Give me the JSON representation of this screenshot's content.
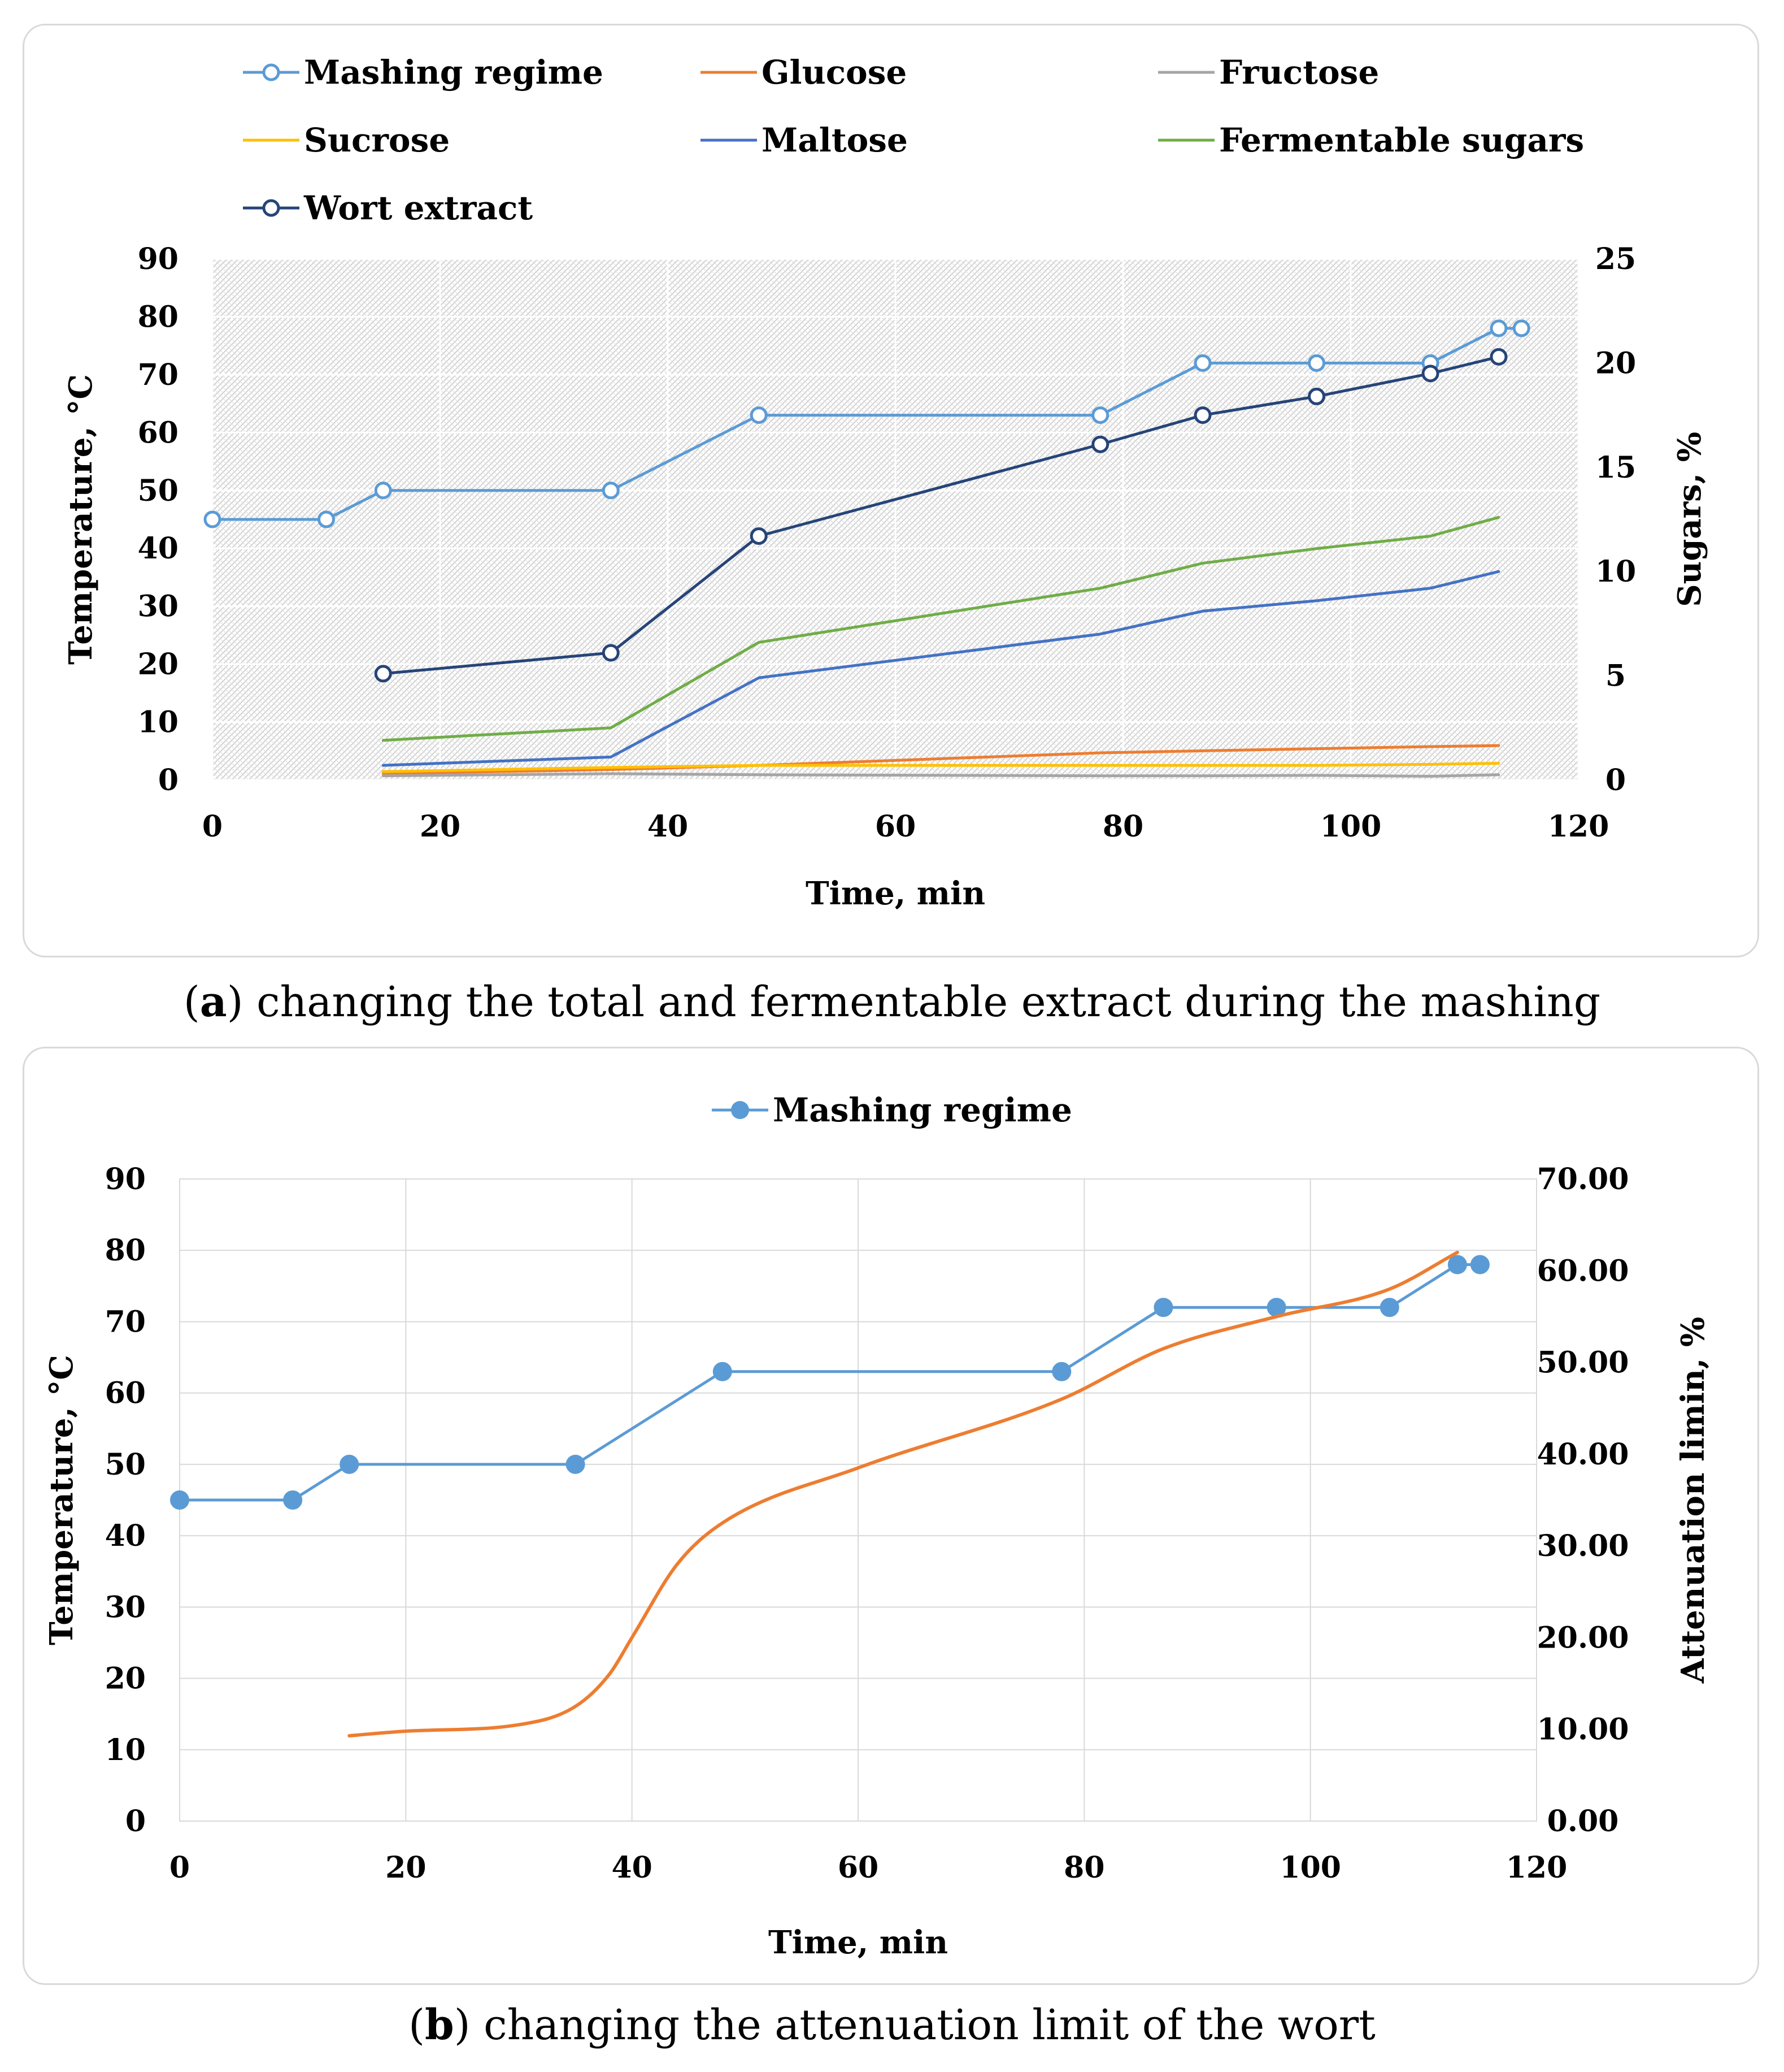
{
  "figure_a": {
    "caption_label": "a",
    "caption_text": "changing the total and fermentable extract during the mashing"
  },
  "figure_b": {
    "caption_label": "b",
    "caption_text": "changing the attenuation limit of the wort"
  },
  "chart_data": [
    {
      "type": "line",
      "xlabel": "Time, min",
      "ylabel": "Temperature, °C",
      "y2label": "Sugars, %",
      "xlim": [
        0,
        120
      ],
      "ylim": [
        0,
        90
      ],
      "y2lim": [
        0,
        25
      ],
      "xticks": [
        0,
        20,
        40,
        60,
        80,
        100,
        120
      ],
      "yticks": [
        0,
        10,
        20,
        30,
        40,
        50,
        60,
        70,
        80,
        90
      ],
      "y2ticks": [
        0,
        5,
        10,
        15,
        20,
        25
      ],
      "legend_position": "top",
      "background": "hatched",
      "series": [
        {
          "name": "Mashing regime",
          "axis": "left",
          "color": "#5b9bd5",
          "marker": "open-circle",
          "x": [
            0,
            10,
            15,
            35,
            48,
            78,
            87,
            97,
            107,
            113,
            115
          ],
          "y": [
            45,
            45,
            50,
            50,
            63,
            63,
            72,
            72,
            72,
            78,
            78
          ]
        },
        {
          "name": "Glucose",
          "axis": "right",
          "color": "#ed7d31",
          "marker": "none",
          "x": [
            15,
            35,
            48,
            78,
            87,
            97,
            107,
            113
          ],
          "y": [
            0.3,
            0.5,
            0.7,
            1.3,
            1.4,
            1.5,
            1.6,
            1.65
          ]
        },
        {
          "name": "Fructose",
          "axis": "right",
          "color": "#a5a5a5",
          "marker": "none",
          "x": [
            15,
            35,
            48,
            78,
            87,
            97,
            107,
            113
          ],
          "y": [
            0.2,
            0.3,
            0.25,
            0.2,
            0.2,
            0.22,
            0.18,
            0.25
          ]
        },
        {
          "name": "Sucrose",
          "axis": "right",
          "color": "#ffc000",
          "marker": "none",
          "x": [
            15,
            35,
            48,
            78,
            87,
            97,
            107,
            113
          ],
          "y": [
            0.4,
            0.6,
            0.7,
            0.7,
            0.7,
            0.7,
            0.75,
            0.8
          ]
        },
        {
          "name": "Maltose",
          "axis": "right",
          "color": "#4472c4",
          "marker": "none",
          "x": [
            15,
            35,
            48,
            78,
            87,
            97,
            107,
            113
          ],
          "y": [
            0.7,
            1.1,
            4.9,
            7.0,
            8.1,
            8.6,
            9.2,
            10.0
          ]
        },
        {
          "name": "Fermentable sugars",
          "axis": "right",
          "color": "#70ad47",
          "marker": "none",
          "x": [
            15,
            35,
            48,
            78,
            87,
            97,
            107,
            113
          ],
          "y": [
            1.9,
            2.5,
            6.6,
            9.2,
            10.4,
            11.1,
            11.7,
            12.6
          ]
        },
        {
          "name": "Wort extract",
          "axis": "right",
          "color": "#264478",
          "marker": "open-circle",
          "x": [
            15,
            35,
            48,
            78,
            87,
            97,
            107,
            113
          ],
          "y": [
            5.1,
            6.1,
            11.7,
            16.1,
            17.5,
            18.4,
            19.5,
            20.3
          ]
        }
      ]
    },
    {
      "type": "line",
      "xlabel": "Time, min",
      "ylabel": "Temperature, °C",
      "y2label": "Attenuation limin, %",
      "xlim": [
        0,
        120
      ],
      "ylim": [
        0,
        90
      ],
      "y2lim": [
        0,
        70
      ],
      "xticks": [
        0,
        20,
        40,
        60,
        80,
        100,
        120
      ],
      "yticks": [
        0,
        10,
        20,
        30,
        40,
        50,
        60,
        70,
        80,
        90
      ],
      "y2ticks": [
        "0.00",
        "10.00",
        "20.00",
        "30.00",
        "40.00",
        "50.00",
        "60.00",
        "70.00"
      ],
      "legend_position": "top",
      "grid": true,
      "series": [
        {
          "name": "Mashing regime",
          "axis": "left",
          "color": "#5b9bd5",
          "marker": "filled-circle",
          "x": [
            0,
            10,
            15,
            35,
            48,
            78,
            87,
            97,
            107,
            113,
            115
          ],
          "y": [
            45,
            45,
            50,
            50,
            63,
            63,
            72,
            72,
            72,
            78,
            78
          ]
        },
        {
          "axis": "right",
          "color": "#ed7d31",
          "marker": "none",
          "smooth": true,
          "x": [
            15,
            20,
            30,
            35,
            38,
            40,
            44,
            48,
            60,
            78,
            87,
            97,
            107,
            113
          ],
          "y": [
            9.3,
            9.8,
            10.5,
            12.5,
            16,
            20,
            28,
            32.5,
            38.5,
            46,
            51.5,
            55,
            58,
            62
          ]
        }
      ]
    }
  ]
}
